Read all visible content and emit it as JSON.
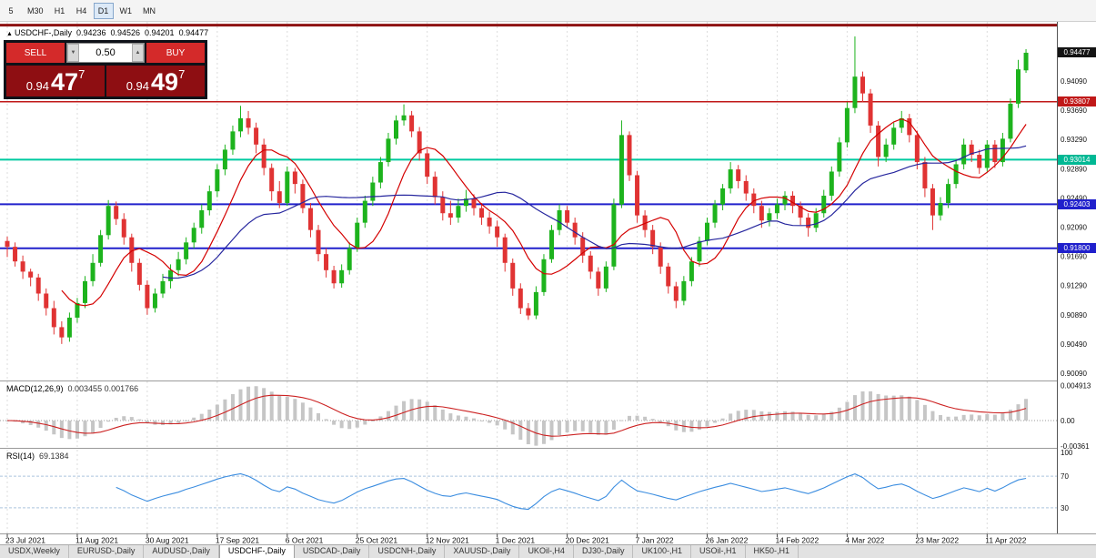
{
  "toolbar": {
    "timeframes": [
      {
        "label": "5",
        "active": false
      },
      {
        "label": "M30",
        "active": false
      },
      {
        "label": "H1",
        "active": false
      },
      {
        "label": "H4",
        "active": false
      },
      {
        "label": "D1",
        "active": true
      },
      {
        "label": "W1",
        "active": false
      },
      {
        "label": "MN",
        "active": false
      }
    ]
  },
  "chart_header": {
    "arrow": "▲",
    "symbol": "USDCHF-,Daily",
    "open": "0.94236",
    "high": "0.94526",
    "low": "0.94201",
    "close": "0.94477"
  },
  "trade_panel": {
    "sell_label": "SELL",
    "buy_label": "BUY",
    "volume": "0.50",
    "spin_down": "▼",
    "spin_up": "▲",
    "bid_prefix": "0.94",
    "bid_main": "47",
    "bid_pip": "7",
    "ask_prefix": "0.94",
    "ask_main": "49",
    "ask_pip": "7"
  },
  "macd": {
    "name": "MACD(12,26,9)",
    "values": "0.003455 0.001766",
    "axis_labels": [
      "0.004913",
      "0.00",
      "-0.00361"
    ],
    "axis_values": [
      0.004913,
      0,
      -0.00361
    ]
  },
  "rsi": {
    "name": "RSI(14)",
    "value": "69.1384",
    "axis_labels": [
      "100",
      "70",
      "30"
    ],
    "axis_values": [
      100,
      70,
      30
    ],
    "levels": [
      70,
      30
    ]
  },
  "price_badges": [
    {
      "label": "0.94477",
      "price": 0.94477,
      "color": "#141414"
    },
    {
      "label": "0.93807",
      "price": 0.93807,
      "color": "#c01818"
    },
    {
      "label": "0.93014",
      "price": 0.93014,
      "color": "#00b894"
    },
    {
      "label": "0.92403",
      "price": 0.92403,
      "color": "#2020cc"
    },
    {
      "label": "0.91800",
      "price": 0.918,
      "color": "#2020cc"
    }
  ],
  "tabs": [
    {
      "label": "USDX,Weekly",
      "active": false
    },
    {
      "label": "EURUSD-,Daily",
      "active": false
    },
    {
      "label": "AUDUSD-,Daily",
      "active": false
    },
    {
      "label": "USDCHF-,Daily",
      "active": true
    },
    {
      "label": "USDCAD-,Daily",
      "active": false
    },
    {
      "label": "USDCNH-,Daily",
      "active": false
    },
    {
      "label": "XAUUSD-,Daily",
      "active": false
    },
    {
      "label": "UKOil-,H4",
      "active": false
    },
    {
      "label": "DJ30-,Daily",
      "active": false
    },
    {
      "label": "UK100-,H1",
      "active": false
    },
    {
      "label": "USOil-,H1",
      "active": false
    },
    {
      "label": "HK50-,H1",
      "active": false
    }
  ],
  "chart_data": {
    "type": "candlestick",
    "symbol": "USDCHF-,Daily",
    "ohlc_readout": {
      "open": 0.94236,
      "high": 0.94526,
      "low": 0.94201,
      "close": 0.94477
    },
    "current_price": 0.94477,
    "price_range": [
      0.8999,
      0.949
    ],
    "y_axis_labels": [
      "0.94490",
      "0.94090",
      "0.93690",
      "0.93290",
      "0.92890",
      "0.92490",
      "0.92090",
      "0.91690",
      "0.91290",
      "0.90890",
      "0.90490",
      "0.90090"
    ],
    "x_tick_labels": [
      "23 Jul 2021",
      "11 Aug 2021",
      "30 Aug 2021",
      "17 Sep 2021",
      "6 Oct 2021",
      "25 Oct 2021",
      "12 Nov 2021",
      "1 Dec 2021",
      "20 Dec 2021",
      "7 Jan 2022",
      "26 Jan 2022",
      "14 Feb 2022",
      "4 Mar 2022",
      "23 Mar 2022",
      "11 Apr 2022"
    ],
    "bars_per_tick": 9,
    "horizontal_lines": [
      {
        "price": 0.94855,
        "color": "#8e1212",
        "width": 3
      },
      {
        "price": 0.93807,
        "color": "#c01818",
        "width": 1.5
      },
      {
        "price": 0.93014,
        "color": "#00c9a0",
        "width": 2
      },
      {
        "price": 0.92403,
        "color": "#2020cc",
        "width": 2
      },
      {
        "price": 0.918,
        "color": "#2020cc",
        "width": 2
      }
    ],
    "overlays": [
      {
        "name": "MA-fast",
        "period": 8,
        "color": "#d40000"
      },
      {
        "name": "MA-slow",
        "period": 21,
        "color": "#26269e"
      }
    ],
    "indicator_panes": [
      {
        "type": "MACD",
        "params": "12,26,9",
        "current_values": [
          0.003455,
          0.001766
        ],
        "axis_labels": [
          "0.004913",
          "0.00",
          "-0.00361"
        ]
      },
      {
        "type": "RSI",
        "params": "14",
        "current_value": 69.1384,
        "axis_labels": [
          "100",
          "70",
          "30"
        ],
        "levels": [
          70,
          30
        ]
      }
    ],
    "candles": [
      [
        0.919,
        0.9196,
        0.9168,
        0.9182
      ],
      [
        0.9182,
        0.9188,
        0.9155,
        0.9162
      ],
      [
        0.9162,
        0.917,
        0.9138,
        0.9148
      ],
      [
        0.9148,
        0.9152,
        0.9128,
        0.914
      ],
      [
        0.914,
        0.9145,
        0.9108,
        0.9118
      ],
      [
        0.9118,
        0.9125,
        0.9088,
        0.9098
      ],
      [
        0.9098,
        0.9108,
        0.9062,
        0.9072
      ],
      [
        0.9072,
        0.908,
        0.9049,
        0.9058
      ],
      [
        0.9058,
        0.9092,
        0.9052,
        0.9085
      ],
      [
        0.9085,
        0.9112,
        0.9078,
        0.9105
      ],
      [
        0.9105,
        0.9142,
        0.9098,
        0.9135
      ],
      [
        0.9135,
        0.9172,
        0.9128,
        0.916
      ],
      [
        0.916,
        0.9205,
        0.9155,
        0.9198
      ],
      [
        0.9198,
        0.9246,
        0.9192,
        0.9238
      ],
      [
        0.9238,
        0.9244,
        0.9212,
        0.922
      ],
      [
        0.922,
        0.9228,
        0.9185,
        0.9195
      ],
      [
        0.9195,
        0.92,
        0.9148,
        0.916
      ],
      [
        0.916,
        0.9166,
        0.9122,
        0.913
      ],
      [
        0.913,
        0.9136,
        0.9089,
        0.9098
      ],
      [
        0.9098,
        0.9125,
        0.9092,
        0.9118
      ],
      [
        0.9118,
        0.9145,
        0.9112,
        0.9135
      ],
      [
        0.9135,
        0.9158,
        0.9125,
        0.915
      ],
      [
        0.915,
        0.9175,
        0.9142,
        0.9165
      ],
      [
        0.9165,
        0.9195,
        0.9158,
        0.9188
      ],
      [
        0.9188,
        0.9215,
        0.918,
        0.9208
      ],
      [
        0.9208,
        0.924,
        0.92,
        0.9232
      ],
      [
        0.9232,
        0.9266,
        0.9225,
        0.9258
      ],
      [
        0.9258,
        0.9295,
        0.925,
        0.9288
      ],
      [
        0.9288,
        0.9322,
        0.928,
        0.9315
      ],
      [
        0.9315,
        0.9348,
        0.9308,
        0.934
      ],
      [
        0.934,
        0.9375,
        0.9332,
        0.9358
      ],
      [
        0.9358,
        0.9368,
        0.9336,
        0.9345
      ],
      [
        0.9345,
        0.9352,
        0.931,
        0.9322
      ],
      [
        0.9322,
        0.933,
        0.928,
        0.929
      ],
      [
        0.929,
        0.9296,
        0.9245,
        0.9258
      ],
      [
        0.9258,
        0.9272,
        0.9235,
        0.9242
      ],
      [
        0.9242,
        0.9292,
        0.9238,
        0.9285
      ],
      [
        0.9285,
        0.929,
        0.9255,
        0.9268
      ],
      [
        0.9268,
        0.9274,
        0.9228,
        0.9235
      ],
      [
        0.9235,
        0.9242,
        0.9195,
        0.9205
      ],
      [
        0.9205,
        0.9212,
        0.9162,
        0.9172
      ],
      [
        0.9172,
        0.918,
        0.914,
        0.915
      ],
      [
        0.915,
        0.9156,
        0.9125,
        0.9132
      ],
      [
        0.9132,
        0.9158,
        0.9126,
        0.915
      ],
      [
        0.915,
        0.9188,
        0.9144,
        0.918
      ],
      [
        0.918,
        0.9222,
        0.9175,
        0.9215
      ],
      [
        0.9215,
        0.9252,
        0.9208,
        0.9245
      ],
      [
        0.9245,
        0.9278,
        0.9238,
        0.927
      ],
      [
        0.927,
        0.9305,
        0.9262,
        0.9298
      ],
      [
        0.9298,
        0.9338,
        0.9292,
        0.933
      ],
      [
        0.933,
        0.9362,
        0.9322,
        0.9355
      ],
      [
        0.9355,
        0.9377,
        0.9348,
        0.9362
      ],
      [
        0.9362,
        0.9368,
        0.9332,
        0.934
      ],
      [
        0.934,
        0.9346,
        0.93,
        0.931
      ],
      [
        0.931,
        0.9316,
        0.9268,
        0.9278
      ],
      [
        0.9278,
        0.9285,
        0.924,
        0.925
      ],
      [
        0.925,
        0.9258,
        0.9218,
        0.9228
      ],
      [
        0.9228,
        0.9245,
        0.9212,
        0.9222
      ],
      [
        0.9222,
        0.9248,
        0.9215,
        0.9238
      ],
      [
        0.9238,
        0.926,
        0.923,
        0.9248
      ],
      [
        0.9248,
        0.9254,
        0.9225,
        0.9235
      ],
      [
        0.9235,
        0.9242,
        0.9212,
        0.9222
      ],
      [
        0.9222,
        0.923,
        0.92,
        0.921
      ],
      [
        0.921,
        0.9218,
        0.9182,
        0.9195
      ],
      [
        0.9195,
        0.92,
        0.9148,
        0.916
      ],
      [
        0.916,
        0.9166,
        0.9115,
        0.9125
      ],
      [
        0.9125,
        0.9132,
        0.909,
        0.9098
      ],
      [
        0.9098,
        0.9105,
        0.9082,
        0.9088
      ],
      [
        0.9088,
        0.9128,
        0.9083,
        0.912
      ],
      [
        0.912,
        0.9172,
        0.9115,
        0.9165
      ],
      [
        0.9165,
        0.9212,
        0.916,
        0.9205
      ],
      [
        0.9205,
        0.924,
        0.9198,
        0.9232
      ],
      [
        0.9232,
        0.9238,
        0.9208,
        0.9215
      ],
      [
        0.9215,
        0.9222,
        0.9185,
        0.9195
      ],
      [
        0.9195,
        0.9202,
        0.916,
        0.917
      ],
      [
        0.917,
        0.9176,
        0.9138,
        0.9148
      ],
      [
        0.9148,
        0.9154,
        0.9115,
        0.9125
      ],
      [
        0.9125,
        0.9162,
        0.912,
        0.9155
      ],
      [
        0.9155,
        0.9248,
        0.915,
        0.924
      ],
      [
        0.924,
        0.9355,
        0.9235,
        0.9335
      ],
      [
        0.9335,
        0.934,
        0.9272,
        0.928
      ],
      [
        0.928,
        0.9286,
        0.9215,
        0.9225
      ],
      [
        0.9225,
        0.9232,
        0.9195,
        0.9205
      ],
      [
        0.9205,
        0.9212,
        0.9172,
        0.9182
      ],
      [
        0.9182,
        0.9188,
        0.9145,
        0.9155
      ],
      [
        0.9155,
        0.916,
        0.9118,
        0.9128
      ],
      [
        0.9128,
        0.9134,
        0.9098,
        0.9108
      ],
      [
        0.9108,
        0.9142,
        0.9102,
        0.9135
      ],
      [
        0.9135,
        0.9168,
        0.9128,
        0.9162
      ],
      [
        0.9162,
        0.9196,
        0.9155,
        0.919
      ],
      [
        0.919,
        0.9222,
        0.9184,
        0.9215
      ],
      [
        0.9215,
        0.9246,
        0.9208,
        0.924
      ],
      [
        0.924,
        0.9268,
        0.9232,
        0.9262
      ],
      [
        0.9262,
        0.9298,
        0.9255,
        0.9288
      ],
      [
        0.9288,
        0.9294,
        0.9262,
        0.9272
      ],
      [
        0.9272,
        0.928,
        0.9245,
        0.9255
      ],
      [
        0.9255,
        0.9262,
        0.9228,
        0.9238
      ],
      [
        0.9238,
        0.9245,
        0.9208,
        0.9218
      ],
      [
        0.9218,
        0.9235,
        0.921,
        0.9228
      ],
      [
        0.9228,
        0.9248,
        0.922,
        0.924
      ],
      [
        0.924,
        0.9258,
        0.9232,
        0.9252
      ],
      [
        0.9252,
        0.9258,
        0.9228,
        0.9238
      ],
      [
        0.9238,
        0.9244,
        0.9212,
        0.9222
      ],
      [
        0.9222,
        0.9228,
        0.9196,
        0.9208
      ],
      [
        0.9208,
        0.9235,
        0.9202,
        0.9228
      ],
      [
        0.9228,
        0.926,
        0.9222,
        0.9252
      ],
      [
        0.9252,
        0.9292,
        0.9245,
        0.9285
      ],
      [
        0.9285,
        0.9332,
        0.9278,
        0.9325
      ],
      [
        0.9325,
        0.938,
        0.9318,
        0.9372
      ],
      [
        0.9372,
        0.947,
        0.9365,
        0.9415
      ],
      [
        0.9415,
        0.9422,
        0.938,
        0.9392
      ],
      [
        0.9392,
        0.9398,
        0.9338,
        0.9348
      ],
      [
        0.9348,
        0.9354,
        0.9292,
        0.9305
      ],
      [
        0.9305,
        0.933,
        0.9298,
        0.9322
      ],
      [
        0.9322,
        0.9352,
        0.9315,
        0.9345
      ],
      [
        0.9345,
        0.9368,
        0.9338,
        0.9358
      ],
      [
        0.9358,
        0.9364,
        0.9325,
        0.9335
      ],
      [
        0.9335,
        0.9341,
        0.9288,
        0.9298
      ],
      [
        0.9298,
        0.9305,
        0.925,
        0.9262
      ],
      [
        0.9262,
        0.9268,
        0.9205,
        0.9225
      ],
      [
        0.9225,
        0.925,
        0.9218,
        0.9242
      ],
      [
        0.9242,
        0.9275,
        0.9235,
        0.9268
      ],
      [
        0.9268,
        0.9302,
        0.9262,
        0.9295
      ],
      [
        0.9295,
        0.933,
        0.9288,
        0.9322
      ],
      [
        0.9322,
        0.9328,
        0.9298,
        0.9308
      ],
      [
        0.9308,
        0.9315,
        0.9282,
        0.929
      ],
      [
        0.929,
        0.9328,
        0.9285,
        0.9322
      ],
      [
        0.9322,
        0.9328,
        0.929,
        0.9298
      ],
      [
        0.9298,
        0.9338,
        0.9292,
        0.933
      ],
      [
        0.933,
        0.9385,
        0.9325,
        0.9378
      ],
      [
        0.9378,
        0.9438,
        0.9372,
        0.9425
      ],
      [
        0.94236,
        0.94526,
        0.94201,
        0.94477
      ]
    ]
  }
}
